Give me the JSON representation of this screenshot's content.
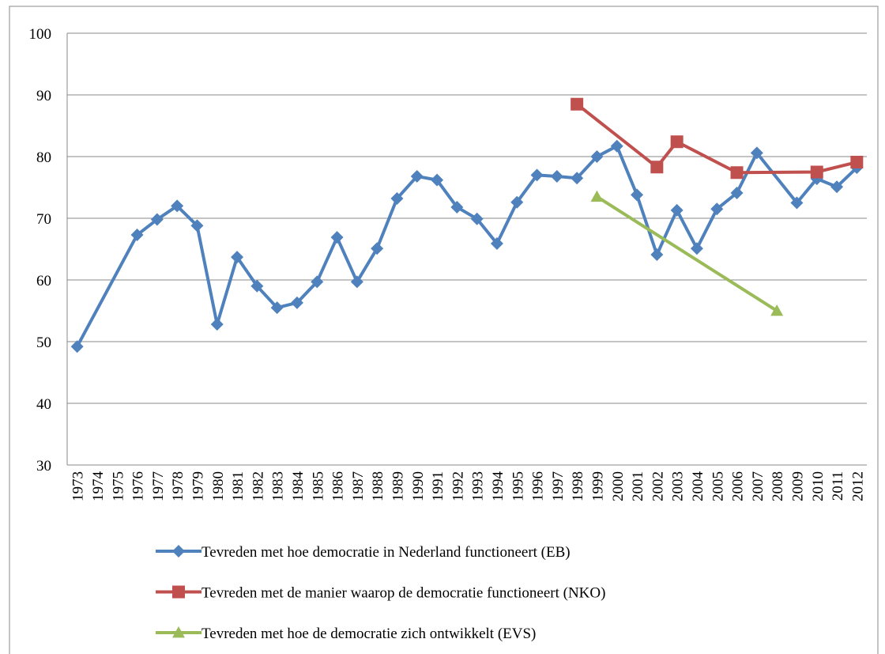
{
  "chart_data": {
    "type": "line",
    "categories": [
      "1973",
      "1974",
      "1975",
      "1976",
      "1977",
      "1978",
      "1979",
      "1980",
      "1981",
      "1982",
      "1983",
      "1984",
      "1985",
      "1986",
      "1987",
      "1988",
      "1989",
      "1990",
      "1991",
      "1992",
      "1993",
      "1994",
      "1995",
      "1996",
      "1997",
      "1998",
      "1999",
      "2000",
      "2001",
      "2002",
      "2003",
      "2004",
      "2005",
      "2006",
      "2007",
      "2008",
      "2009",
      "2010",
      "2011",
      "2012"
    ],
    "series": [
      {
        "name": "Tevreden met hoe democratie in Nederland functioneert (EB)",
        "color": "#4f81bd",
        "marker": "diamond",
        "values": [
          49.2,
          null,
          null,
          67.3,
          69.8,
          72,
          68.8,
          52.8,
          63.7,
          59,
          55.5,
          56.3,
          59.7,
          66.9,
          59.7,
          65.1,
          73.2,
          76.8,
          76.2,
          71.8,
          69.9,
          65.9,
          72.6,
          77,
          76.8,
          76.5,
          80,
          81.7,
          73.8,
          64.1,
          71.3,
          65.1,
          71.5,
          74.1,
          80.6,
          null,
          72.5,
          76.4,
          75.1,
          78.2
        ]
      },
      {
        "name": "Tevreden met de manier waarop de democratie functioneert (NKO)",
        "color": "#c0504d",
        "marker": "square",
        "values": [
          null,
          null,
          null,
          null,
          null,
          null,
          null,
          null,
          null,
          null,
          null,
          null,
          null,
          null,
          null,
          null,
          null,
          null,
          null,
          null,
          null,
          null,
          null,
          null,
          null,
          88.5,
          null,
          null,
          null,
          78.3,
          82.4,
          null,
          null,
          77.4,
          null,
          null,
          null,
          77.5,
          null,
          79.1
        ]
      },
      {
        "name": "Tevreden met hoe de democratie zich ontwikkelt (EVS)",
        "color": "#9bbb59",
        "marker": "triangle",
        "values": [
          null,
          null,
          null,
          null,
          null,
          null,
          null,
          null,
          null,
          null,
          null,
          null,
          null,
          null,
          null,
          null,
          null,
          null,
          null,
          null,
          null,
          null,
          null,
          null,
          null,
          null,
          73.5,
          null,
          null,
          null,
          null,
          null,
          null,
          null,
          null,
          55,
          null,
          null,
          null,
          null
        ]
      }
    ],
    "ylim": [
      30,
      100
    ],
    "yticks": [
      30,
      40,
      50,
      60,
      70,
      80,
      90,
      100
    ],
    "grid": true,
    "span_gaps": true,
    "legend": "bottom"
  }
}
